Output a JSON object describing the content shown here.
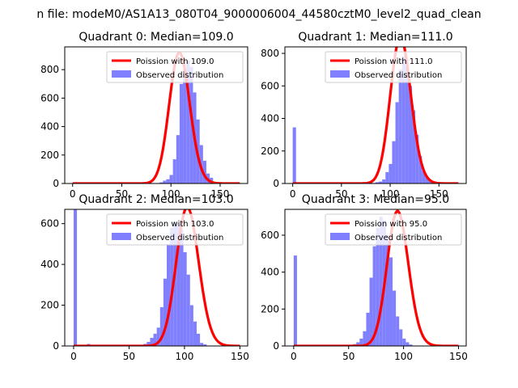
{
  "figure": {
    "suptitle": "n file: modeM0/AS1A13_080T04_9000006004_44580cztM0_level2_quad_clean",
    "colors": {
      "hist": "#8080ff",
      "fit": "#ff0000"
    }
  },
  "chart_data": [
    {
      "type": "bar",
      "title": "Quadrant 0: Median=109.0",
      "xlim": [
        -8,
        178
      ],
      "ylim": [
        0,
        960
      ],
      "xticks": [
        0,
        50,
        100,
        150
      ],
      "yticks": [
        0,
        200,
        400,
        600,
        800
      ],
      "legend": {
        "placement": "top-right",
        "line": "Poission with 109.0",
        "patch": "Observed distribution"
      },
      "hist": {
        "bin_width": 3.4,
        "start": 0,
        "counts": [
          0,
          0,
          0,
          0,
          0,
          0,
          0,
          0,
          0,
          0,
          0,
          0,
          0,
          0,
          0,
          0,
          0,
          0,
          0,
          0,
          0,
          0,
          0,
          0,
          0,
          3,
          8,
          20,
          30,
          60,
          170,
          340,
          700,
          800,
          860,
          820,
          640,
          450,
          270,
          160,
          70,
          40,
          12,
          8,
          0,
          0,
          0,
          0,
          0,
          0
        ]
      },
      "fit": {
        "lambda": 109.0,
        "scale": 920,
        "xrange": [
          0,
          170
        ]
      }
    },
    {
      "type": "bar",
      "title": "Quadrant 1: Median=111.0",
      "xlim": [
        -8,
        178
      ],
      "ylim": [
        0,
        840
      ],
      "xticks": [
        0,
        50,
        100,
        150
      ],
      "yticks": [
        0,
        200,
        400,
        600,
        800
      ],
      "legend": {
        "placement": "top-right",
        "line": "Poission with 111.0",
        "patch": "Observed distribution"
      },
      "hist": {
        "bin_width": 3.4,
        "start": 0,
        "counts": [
          345,
          0,
          0,
          0,
          0,
          0,
          0,
          0,
          0,
          0,
          0,
          0,
          0,
          0,
          0,
          0,
          0,
          0,
          0,
          0,
          0,
          0,
          0,
          0,
          3,
          8,
          12,
          25,
          70,
          120,
          260,
          500,
          700,
          780,
          720,
          600,
          450,
          300,
          170,
          80,
          40,
          15,
          5,
          0,
          0,
          0,
          0,
          0,
          0,
          0
        ]
      },
      "fit": {
        "lambda": 111.0,
        "scale": 900,
        "xrange": [
          0,
          170
        ]
      }
    },
    {
      "type": "bar",
      "title": "Quadrant 2: Median=103.0",
      "xlim": [
        -8,
        157
      ],
      "ylim": [
        0,
        670
      ],
      "xticks": [
        0,
        50,
        100,
        150
      ],
      "yticks": [
        0,
        200,
        400,
        600
      ],
      "legend": {
        "placement": "top-right",
        "line": "Poission with 103.0",
        "patch": "Observed distribution"
      },
      "hist": {
        "bin_width": 3,
        "start": 0,
        "counts": [
          670,
          0,
          0,
          3,
          10,
          0,
          0,
          0,
          0,
          0,
          0,
          0,
          0,
          0,
          0,
          0,
          0,
          0,
          0,
          3,
          4,
          10,
          20,
          40,
          60,
          90,
          190,
          330,
          500,
          580,
          610,
          600,
          570,
          460,
          350,
          200,
          120,
          60,
          15,
          8
        ]
      },
      "fit": {
        "lambda": 103.0,
        "scale": 680,
        "xrange": [
          0,
          150
        ]
      }
    },
    {
      "type": "bar",
      "title": "Quadrant 3: Median=95.0",
      "xlim": [
        -8,
        157
      ],
      "ylim": [
        0,
        740
      ],
      "xticks": [
        0,
        50,
        100,
        150
      ],
      "yticks": [
        0,
        200,
        400,
        600
      ],
      "legend": {
        "placement": "top-right",
        "line": "Poission with 95.0",
        "patch": "Observed distribution"
      },
      "hist": {
        "bin_width": 3,
        "start": 0,
        "counts": [
          490,
          0,
          0,
          0,
          0,
          0,
          0,
          0,
          0,
          0,
          0,
          0,
          0,
          0,
          0,
          0,
          0,
          3,
          10,
          20,
          40,
          80,
          180,
          370,
          540,
          640,
          700,
          680,
          600,
          480,
          300,
          160,
          90,
          40,
          20,
          8,
          0,
          0,
          0,
          0
        ]
      },
      "fit": {
        "lambda": 95.0,
        "scale": 730,
        "xrange": [
          0,
          150
        ]
      }
    }
  ]
}
